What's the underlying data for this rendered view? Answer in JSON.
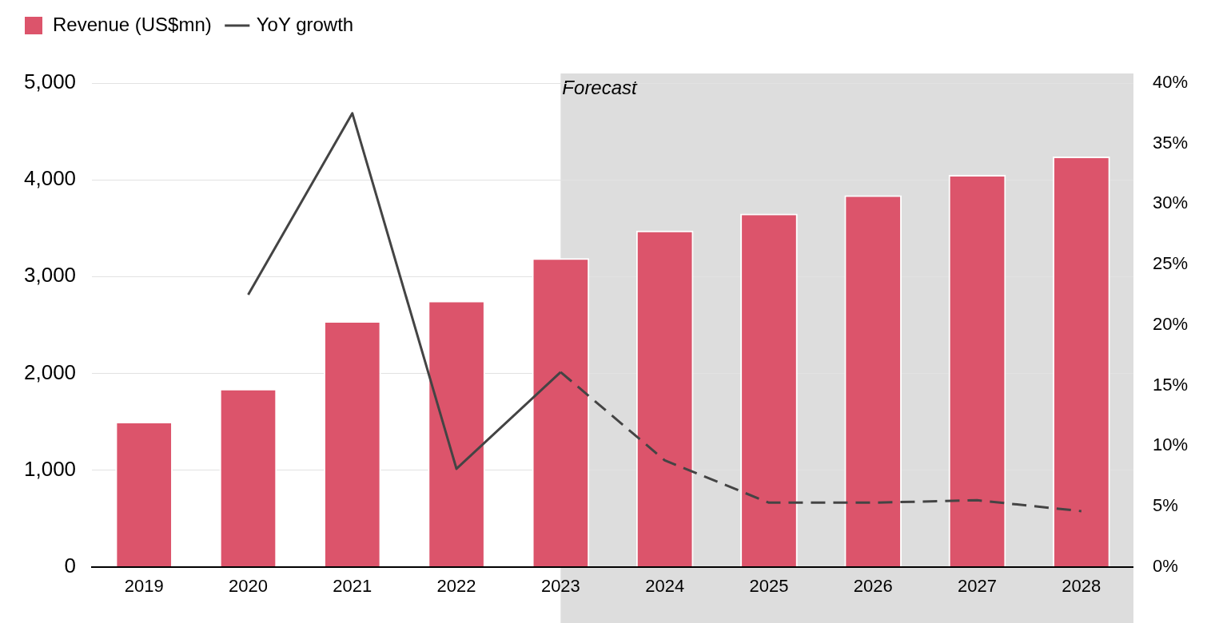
{
  "chart_data": {
    "type": "bar",
    "categories": [
      "2019",
      "2020",
      "2021",
      "2022",
      "2023",
      "2024",
      "2025",
      "2026",
      "2027",
      "2028"
    ],
    "series": [
      {
        "name": "Revenue (US$mn)",
        "color": "#dc546b",
        "values": [
          1500,
          1840,
          2540,
          2750,
          3190,
          3475,
          3650,
          3840,
          4050,
          4240
        ]
      },
      {
        "name": "YoY growth",
        "type": "line",
        "axis": "y2",
        "color": "#444444",
        "line_style": "solid",
        "values": [
          null,
          22.5,
          37.5,
          8.1,
          16.1,
          null,
          null,
          null,
          null,
          null
        ]
      },
      {
        "type": "line",
        "axis": "y2",
        "color": "#444444",
        "line_style": "dashed",
        "values": [
          null,
          null,
          null,
          null,
          16.1,
          8.8,
          5.3,
          5.3,
          5.5,
          4.6
        ]
      }
    ],
    "ylim": [
      0,
      5000
    ],
    "yticks": [
      {
        "value": 0,
        "label": "0"
      },
      {
        "value": 1000,
        "label": "1,000"
      },
      {
        "value": 2000,
        "label": "2,000"
      },
      {
        "value": 3000,
        "label": "3,000"
      },
      {
        "value": 4000,
        "label": "4,000"
      },
      {
        "value": 5000,
        "label": "5,000"
      }
    ],
    "y2lim": [
      0,
      40
    ],
    "y2ticks": [
      {
        "value": 0,
        "label": "0%"
      },
      {
        "value": 5,
        "label": "5%"
      },
      {
        "value": 10,
        "label": "10%"
      },
      {
        "value": 15,
        "label": "15%"
      },
      {
        "value": 20,
        "label": "20%"
      },
      {
        "value": 25,
        "label": "25%"
      },
      {
        "value": 30,
        "label": "30%"
      },
      {
        "value": 35,
        "label": "35%"
      },
      {
        "value": 40,
        "label": "40%"
      }
    ],
    "bands": [
      {
        "axis": "x",
        "from": "2023",
        "to": "2028",
        "label": "Forecast",
        "color": "#dddddd"
      }
    ],
    "grid": "y",
    "legend": "top left",
    "marker": "none"
  }
}
